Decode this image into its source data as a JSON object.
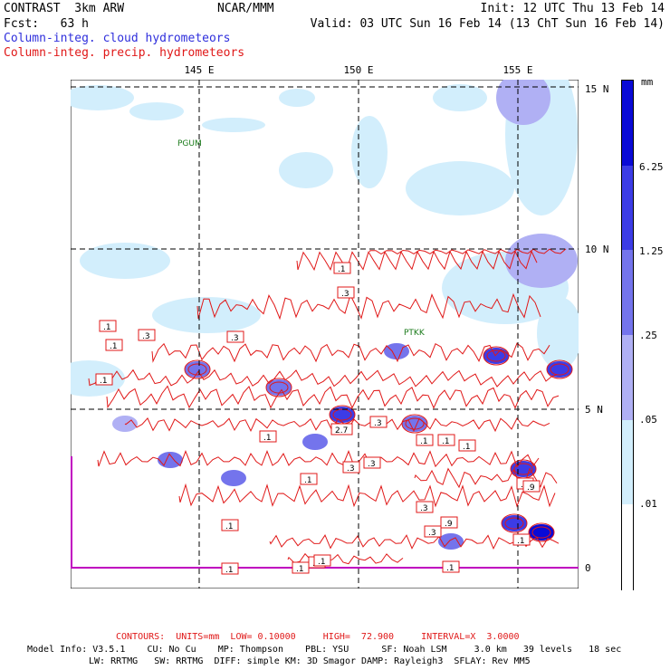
{
  "header": {
    "model": "CONTRAST  3km ARW",
    "center": "NCAR/MMM",
    "init": "Init: 12 UTC Thu 13 Feb 14",
    "fcst": "Fcst:   63 h",
    "valid": "Valid: 03 UTC Sun 16 Feb 14 (13 ChT Sun 16 Feb 14)"
  },
  "legend": {
    "cloud": "Column-integ. cloud hydrometeors",
    "precip": "Column-integ. precip. hydrometeors",
    "cloud_color": "#2f2fdc",
    "precip_color": "#e01818"
  },
  "axes": {
    "lon_labels": [
      "145 E",
      "150 E",
      "155 E"
    ],
    "lat_labels": [
      "15 N",
      "10 N",
      "5 N",
      "0"
    ]
  },
  "stations": [
    "PGUM",
    "PTKK"
  ],
  "colorbar": {
    "units": "mm",
    "labels": [
      "6.25",
      "1.25",
      ".25",
      ".05",
      ".01"
    ],
    "colors": [
      "#0a0ad6",
      "#3c3ce6",
      "#7474ec",
      "#b0b0f4",
      "#d2eefc",
      "#ffffff"
    ]
  },
  "contour_labels": [
    ".1",
    ".3",
    ".3",
    ".1",
    ".1",
    ".1",
    ".3",
    ".1",
    ".3",
    ".1",
    ".1",
    ".1",
    ".3",
    ".3",
    "2.7",
    ".1",
    ".3",
    ".1",
    ".1",
    ".9",
    ".3",
    ".3",
    ".9",
    ".1",
    ".1",
    ".3",
    ".1",
    ".1"
  ],
  "footer": {
    "contours": "CONTOURS:  UNITS=mm  LOW= 0.10000     HIGH=  72.900     INTERVAL=X  3.0000",
    "line1": "Model Info: V3.5.1    CU: No Cu    MP: Thompson    PBL: YSU      SF: Noah LSM     3.0 km   39 levels   18 sec",
    "line2": "LW: RRTMG   SW: RRTMG  DIFF: simple KM: 3D Smagor DAMP: Rayleigh3  SFLAY: Rev MM5"
  }
}
